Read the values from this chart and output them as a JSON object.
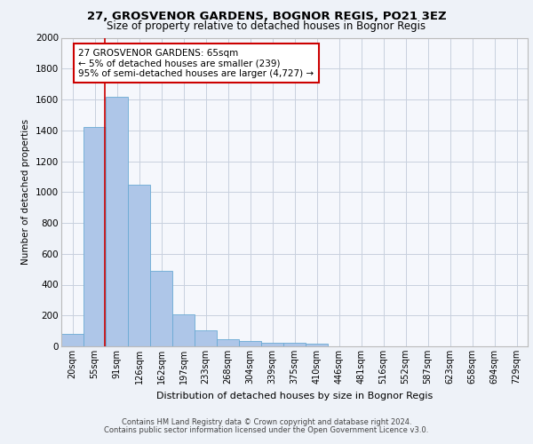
{
  "title_line1": "27, GROSVENOR GARDENS, BOGNOR REGIS, PO21 3EZ",
  "title_line2": "Size of property relative to detached houses in Bognor Regis",
  "xlabel": "Distribution of detached houses by size in Bognor Regis",
  "ylabel": "Number of detached properties",
  "categories": [
    "20sqm",
    "55sqm",
    "91sqm",
    "126sqm",
    "162sqm",
    "197sqm",
    "233sqm",
    "268sqm",
    "304sqm",
    "339sqm",
    "375sqm",
    "410sqm",
    "446sqm",
    "481sqm",
    "516sqm",
    "552sqm",
    "587sqm",
    "623sqm",
    "658sqm",
    "694sqm",
    "729sqm"
  ],
  "values": [
    80,
    1420,
    1620,
    1050,
    490,
    205,
    105,
    48,
    35,
    25,
    22,
    15,
    0,
    0,
    0,
    0,
    0,
    0,
    0,
    0,
    0
  ],
  "bar_color": "#aec6e8",
  "bar_edge_color": "#6aaad4",
  "property_line_color": "#cc0000",
  "annotation_text": "27 GROSVENOR GARDENS: 65sqm\n← 5% of detached houses are smaller (239)\n95% of semi-detached houses are larger (4,727) →",
  "annotation_box_color": "#cc0000",
  "ylim": [
    0,
    2000
  ],
  "yticks": [
    0,
    200,
    400,
    600,
    800,
    1000,
    1200,
    1400,
    1600,
    1800,
    2000
  ],
  "footer_line1": "Contains HM Land Registry data © Crown copyright and database right 2024.",
  "footer_line2": "Contains public sector information licensed under the Open Government Licence v3.0.",
  "background_color": "#eef2f8",
  "plot_bg_color": "#f5f7fc",
  "grid_color": "#c8d0de"
}
